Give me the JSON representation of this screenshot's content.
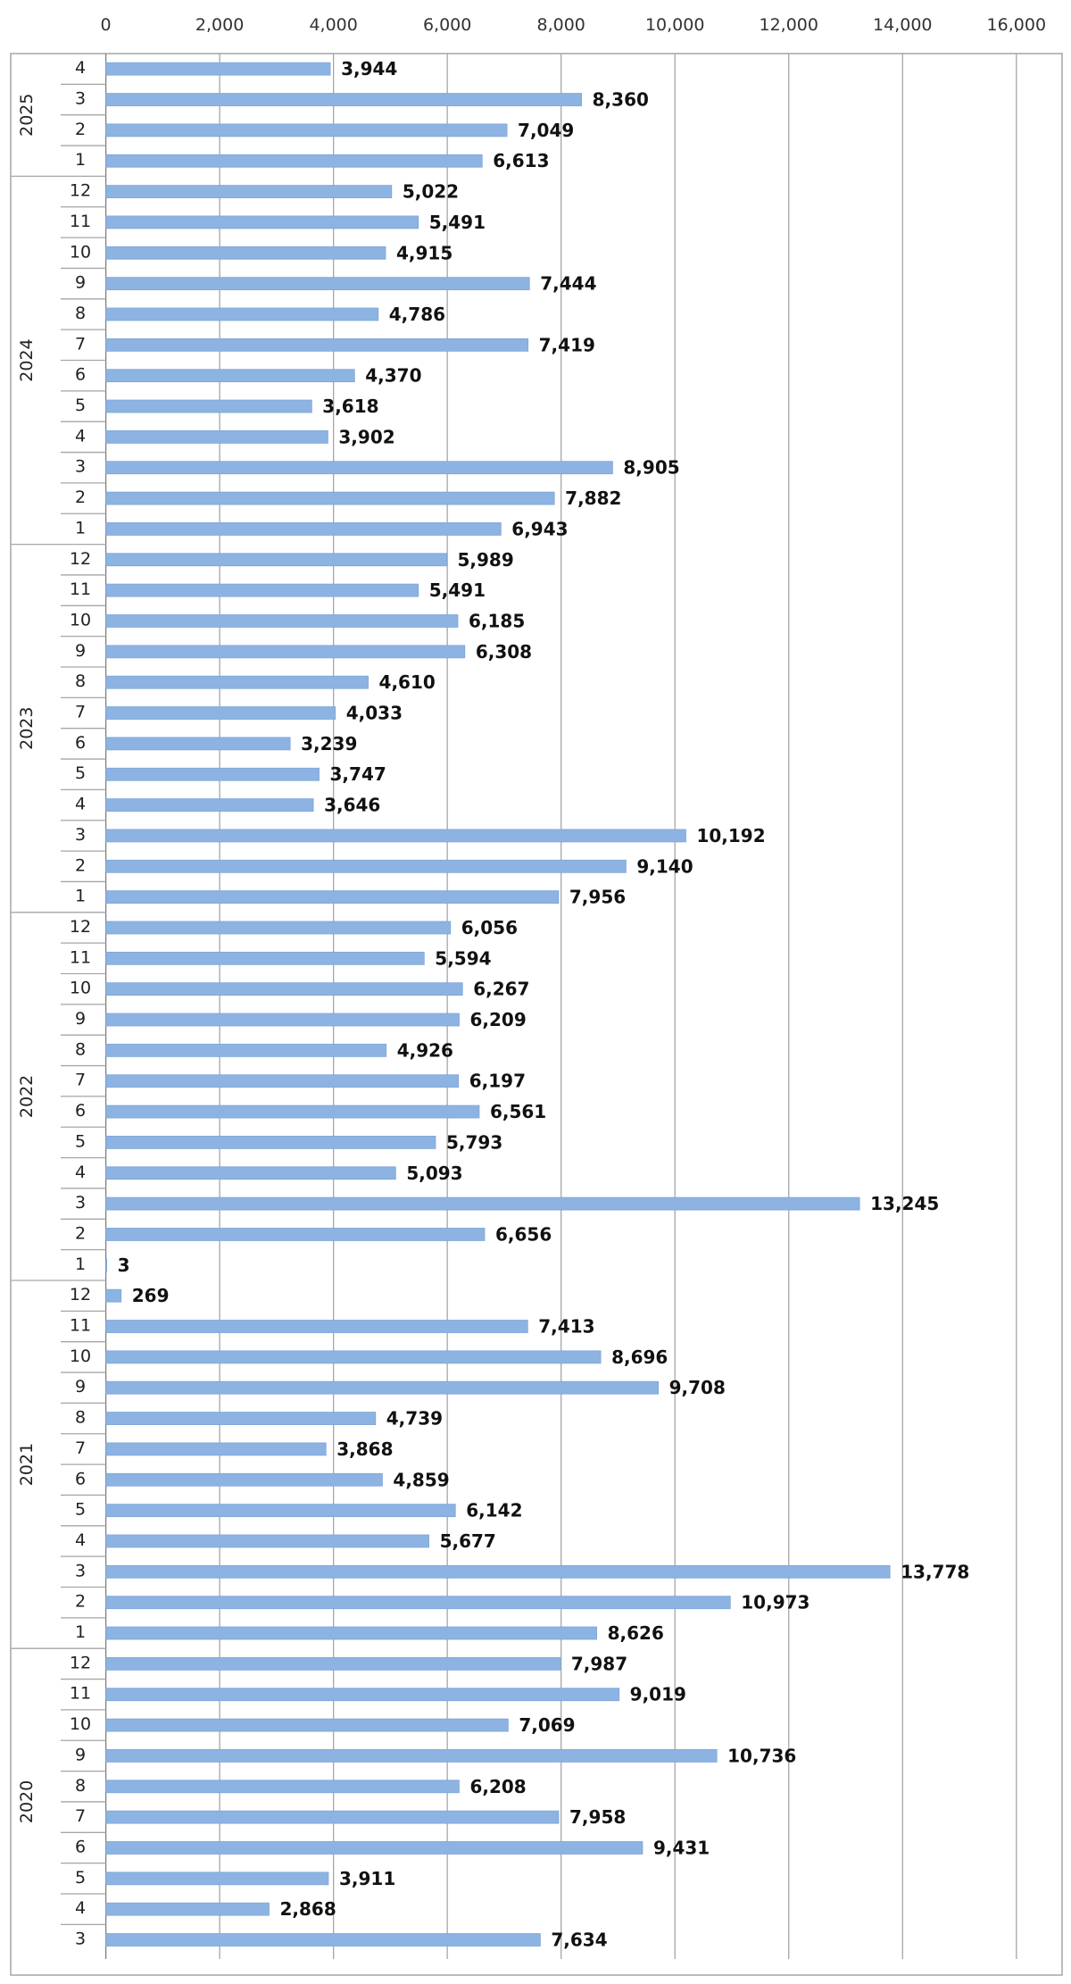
{
  "chart_data": {
    "type": "bar",
    "orientation": "horizontal",
    "title": "",
    "xlabel": "",
    "ylabel": "",
    "xlim": [
      0,
      16000
    ],
    "x_ticks": [
      "0",
      "2,000",
      "4,000",
      "6,000",
      "8,000",
      "10,000",
      "12,000",
      "14,000",
      "16,000"
    ],
    "x_tick_values": [
      0,
      2000,
      4000,
      6000,
      8000,
      10000,
      12000,
      14000,
      16000
    ],
    "axis_position": "top",
    "grid": true,
    "legend": "none",
    "bar_color": "#8db3e2",
    "groups": [
      {
        "year": "2025",
        "months": [
          "4",
          "3",
          "2",
          "1"
        ],
        "values": [
          3944,
          8360,
          7049,
          6613
        ],
        "labels": [
          "3,944",
          "8,360",
          "7,049",
          "6,613"
        ]
      },
      {
        "year": "2024",
        "months": [
          "12",
          "11",
          "10",
          "9",
          "8",
          "7",
          "6",
          "5",
          "4",
          "3",
          "2",
          "1"
        ],
        "values": [
          5022,
          5491,
          4915,
          7444,
          4786,
          7419,
          4370,
          3618,
          3902,
          8905,
          7882,
          6943
        ],
        "labels": [
          "5,022",
          "5,491",
          "4,915",
          "7,444",
          "4,786",
          "7,419",
          "4,370",
          "3,618",
          "3,902",
          "8,905",
          "7,882",
          "6,943"
        ]
      },
      {
        "year": "2023",
        "months": [
          "12",
          "11",
          "10",
          "9",
          "8",
          "7",
          "6",
          "5",
          "4",
          "3",
          "2",
          "1"
        ],
        "values": [
          5989,
          5491,
          6185,
          6308,
          4610,
          4033,
          3239,
          3747,
          3646,
          10192,
          9140,
          7956
        ],
        "labels": [
          "5,989",
          "5,491",
          "6,185",
          "6,308",
          "4,610",
          "4,033",
          "3,239",
          "3,747",
          "3,646",
          "10,192",
          "9,140",
          "7,956"
        ]
      },
      {
        "year": "2022",
        "months": [
          "12",
          "11",
          "10",
          "9",
          "8",
          "7",
          "6",
          "5",
          "4",
          "3",
          "2",
          "1"
        ],
        "values": [
          6056,
          5594,
          6267,
          6209,
          4926,
          6197,
          6561,
          5793,
          5093,
          13245,
          6656,
          3
        ],
        "labels": [
          "6,056",
          "5,594",
          "6,267",
          "6,209",
          "4,926",
          "6,197",
          "6,561",
          "5,793",
          "5,093",
          "13,245",
          "6,656",
          "3"
        ]
      },
      {
        "year": "2021",
        "months": [
          "12",
          "11",
          "10",
          "9",
          "8",
          "7",
          "6",
          "5",
          "4",
          "3",
          "2",
          "1"
        ],
        "values": [
          269,
          7413,
          8696,
          9708,
          4739,
          3868,
          4859,
          6142,
          5677,
          13778,
          10973,
          8626
        ],
        "labels": [
          "269",
          "7,413",
          "8,696",
          "9,708",
          "4,739",
          "3,868",
          "4,859",
          "6,142",
          "5,677",
          "13,778",
          "10,973",
          "8,626"
        ]
      },
      {
        "year": "2020",
        "months": [
          "12",
          "11",
          "10",
          "9",
          "8",
          "7",
          "6",
          "5",
          "4",
          "3"
        ],
        "values": [
          7987,
          9019,
          7069,
          10736,
          6208,
          7958,
          9431,
          3911,
          2868,
          7634
        ],
        "labels": [
          "7,987",
          "9,019",
          "7,069",
          "10,736",
          "6,208",
          "7,958",
          "9,431",
          "3,911",
          "2,868",
          "7,634"
        ]
      }
    ]
  }
}
